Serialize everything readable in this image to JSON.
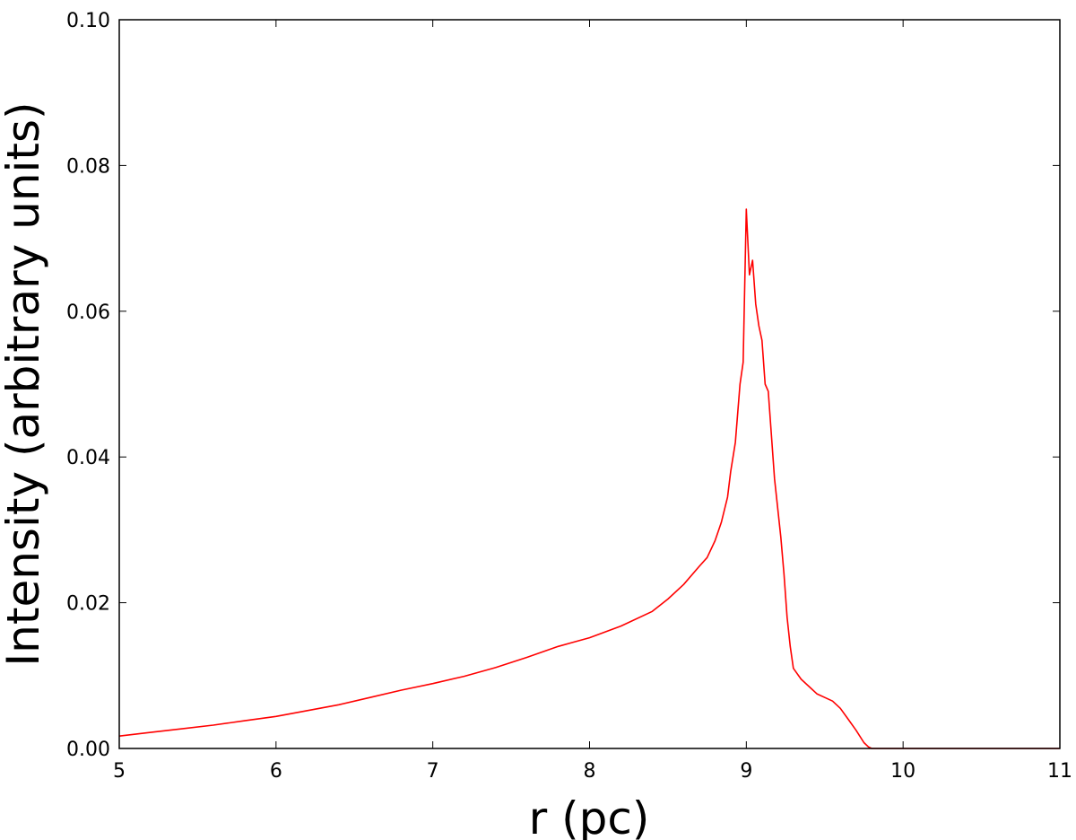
{
  "chart_data": {
    "type": "line",
    "title": "",
    "xlabel": "r (pc)",
    "ylabel": "Intensity (arbitrary units)",
    "xlim": [
      5,
      11
    ],
    "ylim": [
      0.0,
      0.1
    ],
    "xticks": [
      5,
      6,
      7,
      8,
      9,
      10,
      11
    ],
    "xtick_labels": [
      "5",
      "6",
      "7",
      "8",
      "9",
      "10",
      "11"
    ],
    "yticks": [
      0.0,
      0.02,
      0.04,
      0.06,
      0.08,
      0.1
    ],
    "ytick_labels": [
      "0.00",
      "0.02",
      "0.04",
      "0.06",
      "0.08",
      "0.10"
    ],
    "grid": false,
    "line_color": "#ff0000",
    "series": [
      {
        "x": [
          5.0,
          5.2,
          5.4,
          5.6,
          5.8,
          6.0,
          6.2,
          6.4,
          6.6,
          6.8,
          7.0,
          7.2,
          7.4,
          7.6,
          7.8,
          8.0,
          8.2,
          8.4,
          8.5,
          8.6,
          8.7,
          8.75,
          8.8,
          8.84,
          8.88,
          8.9,
          8.93,
          8.96,
          8.98,
          9.0,
          9.02,
          9.04,
          9.06,
          9.08,
          9.1,
          9.12,
          9.14,
          9.16,
          9.18,
          9.2,
          9.22,
          9.24,
          9.26,
          9.28,
          9.3,
          9.35,
          9.4,
          9.45,
          9.5,
          9.55,
          9.6,
          9.65,
          9.7,
          9.75,
          9.78,
          9.8,
          10.0,
          10.5,
          11.0
        ],
        "y": [
          0.0017,
          0.0022,
          0.0027,
          0.0032,
          0.0038,
          0.0044,
          0.0052,
          0.006,
          0.007,
          0.008,
          0.0089,
          0.0099,
          0.0111,
          0.0125,
          0.014,
          0.0152,
          0.0168,
          0.0188,
          0.0205,
          0.0225,
          0.025,
          0.0262,
          0.0285,
          0.031,
          0.0345,
          0.038,
          0.042,
          0.05,
          0.053,
          0.074,
          0.065,
          0.067,
          0.061,
          0.058,
          0.056,
          0.05,
          0.049,
          0.043,
          0.037,
          0.033,
          0.029,
          0.024,
          0.018,
          0.014,
          0.011,
          0.0095,
          0.0085,
          0.0075,
          0.007,
          0.0065,
          0.0055,
          0.004,
          0.0025,
          0.0008,
          0.0002,
          0.0,
          0.0,
          0.0,
          0.0
        ]
      }
    ]
  }
}
